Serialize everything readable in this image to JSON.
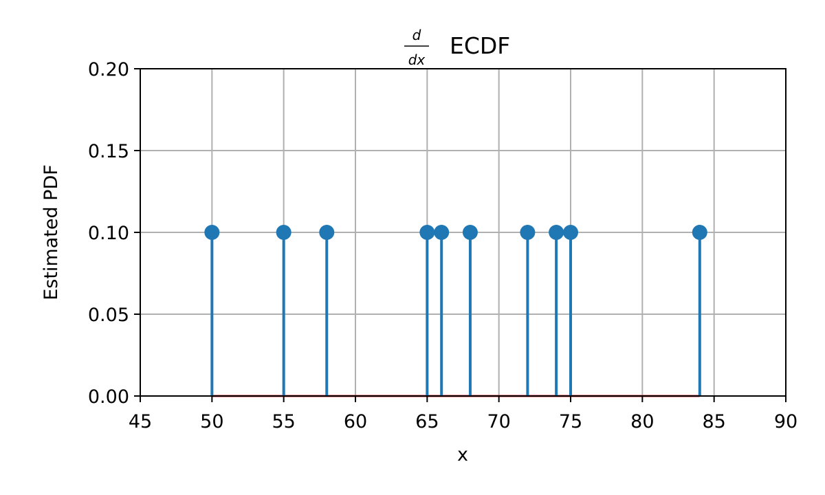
{
  "chart_data": {
    "type": "stem",
    "title": {
      "numerator": "d",
      "denominator": "dx",
      "text": "ECDF"
    },
    "xlabel": "x",
    "ylabel": "Estimated PDF",
    "xlim": [
      45,
      90
    ],
    "ylim": [
      0,
      0.2
    ],
    "xticks": [
      45,
      50,
      55,
      60,
      65,
      70,
      75,
      80,
      85,
      90
    ],
    "yticks": [
      0.0,
      0.05,
      0.1,
      0.15,
      0.2
    ],
    "ytick_labels": [
      "0.00",
      "0.05",
      "0.10",
      "0.15",
      "0.20"
    ],
    "grid": true,
    "x": [
      50,
      55,
      58,
      65,
      66,
      68,
      72,
      74,
      75,
      84
    ],
    "y": [
      0.1,
      0.1,
      0.1,
      0.1,
      0.1,
      0.1,
      0.1,
      0.1,
      0.1,
      0.1
    ],
    "colors": {
      "stem": "#1f77b4",
      "baseline": "#d62728",
      "grid": "#b0b0b0",
      "axes": "#000000"
    }
  }
}
